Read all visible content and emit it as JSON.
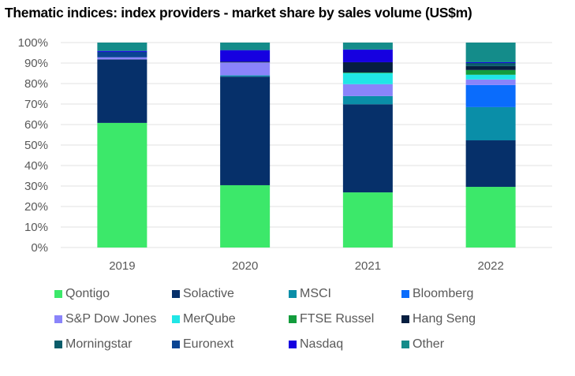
{
  "chart_data": {
    "type": "bar",
    "stacked": true,
    "percent_stacked": true,
    "title": "Thematic indices: index providers - market share by sales volume (US$m)",
    "xlabel": "",
    "ylabel": "",
    "ylim": [
      0,
      100
    ],
    "yticks": [
      "0%",
      "10%",
      "20%",
      "30%",
      "40%",
      "50%",
      "60%",
      "70%",
      "80%",
      "90%",
      "100%"
    ],
    "grid": true,
    "legend_position": "bottom",
    "categories": [
      "2019",
      "2020",
      "2021",
      "2022"
    ],
    "series": [
      {
        "name": "Qontigo",
        "color": "#3ce86a",
        "values": [
          60.8,
          30.4,
          26.9,
          29.6
        ]
      },
      {
        "name": "Solactive",
        "color": "#06306a",
        "values": [
          31.0,
          53.0,
          43.0,
          22.7
        ]
      },
      {
        "name": "MSCI",
        "color": "#0a8ea8",
        "values": [
          0.0,
          0.6,
          4.0,
          16.2
        ]
      },
      {
        "name": "Bloomberg",
        "color": "#0a6cfc",
        "values": [
          0.0,
          0.0,
          0.0,
          10.8
        ]
      },
      {
        "name": "S&P Dow Jones",
        "color": "#8a84fa",
        "values": [
          1.0,
          6.3,
          5.8,
          2.7
        ]
      },
      {
        "name": "MerQube",
        "color": "#20e6e6",
        "values": [
          0.0,
          0.0,
          5.4,
          2.3
        ]
      },
      {
        "name": "FTSE Russel",
        "color": "#129c3c",
        "values": [
          0.0,
          0.0,
          0.3,
          2.3
        ]
      },
      {
        "name": "Hang Seng",
        "color": "#061e40",
        "values": [
          0.0,
          0.4,
          5.0,
          1.9
        ]
      },
      {
        "name": "Morningstar",
        "color": "#0a5c6a",
        "values": [
          0.0,
          0.0,
          0.0,
          1.5
        ]
      },
      {
        "name": "Euronext",
        "color": "#0a4492",
        "values": [
          2.6,
          0.0,
          0.0,
          0.0
        ]
      },
      {
        "name": "Nasdaq",
        "color": "#1600e0",
        "values": [
          0.5,
          5.6,
          6.2,
          0.4
        ]
      },
      {
        "name": "Other",
        "color": "#148c8a",
        "values": [
          4.1,
          3.7,
          3.4,
          9.6
        ]
      }
    ]
  }
}
